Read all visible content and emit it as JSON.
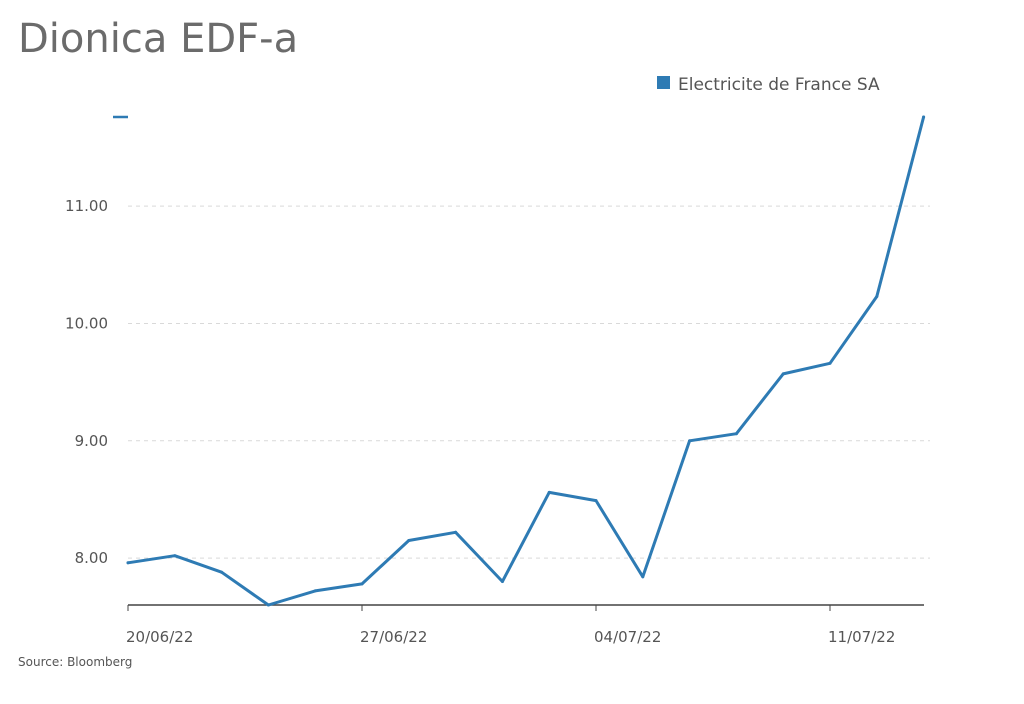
{
  "chart_data": {
    "type": "line",
    "title": "Dionica EDF-a",
    "source": "Source: Bloomberg",
    "legend_position": "top-right",
    "grid": true,
    "ylim": [
      7.6,
      11.76
    ],
    "y_ticks": [
      {
        "value": 8.0,
        "label": "8.00"
      },
      {
        "value": 9.0,
        "label": "9.00"
      },
      {
        "value": 10.0,
        "label": "10.00"
      },
      {
        "value": 11.0,
        "label": "11.00"
      }
    ],
    "x": [
      "20/06/22",
      "21/06/22",
      "22/06/22",
      "23/06/22",
      "24/06/22",
      "27/06/22",
      "28/06/22",
      "29/06/22",
      "30/06/22",
      "01/07/22",
      "04/07/22",
      "05/07/22",
      "06/07/22",
      "07/07/22",
      "08/07/22",
      "11/07/22",
      "12/07/22",
      "13/07/22"
    ],
    "x_ticks": [
      {
        "index": 0,
        "label": "20/06/22"
      },
      {
        "index": 5,
        "label": "27/06/22"
      },
      {
        "index": 10,
        "label": "04/07/22"
      },
      {
        "index": 15,
        "label": "11/07/22"
      }
    ],
    "series": [
      {
        "name": "Electricite de France SA",
        "color": "#2e7bb4",
        "values": [
          7.96,
          8.02,
          7.88,
          7.6,
          7.72,
          7.78,
          8.15,
          8.22,
          7.8,
          8.56,
          8.49,
          7.84,
          9.0,
          9.06,
          9.57,
          9.66,
          10.23,
          11.76
        ]
      }
    ]
  }
}
